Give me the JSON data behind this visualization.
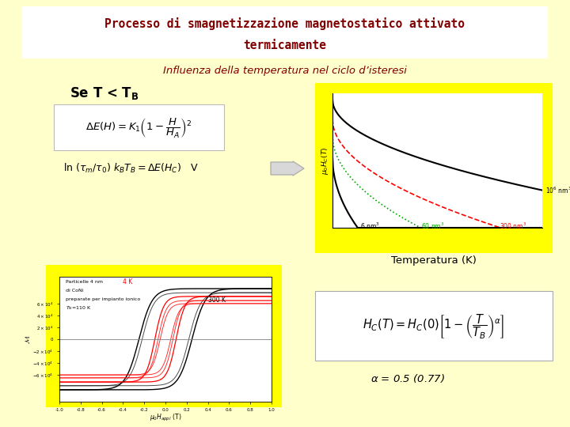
{
  "bg_color": "#ffffcc",
  "title_bg_color": "#ffffff",
  "title_text_line1": "Processo di smagnetizzazione magnetostatico attivato",
  "title_text_line2": "termicamente",
  "title_color": "#800000",
  "subtitle_text": "Influenza della temperatura nel ciclo d’isteresi",
  "subtitle_color": "#800000",
  "yellow_color": "#ffff00",
  "formula3_text": "$H_C(T) = H_C(0)\\left[1 - \\left(\\dfrac{T}{T_B}\\right)^\\alpha\\right]$",
  "alpha_text": "$\\alpha$ = 0.5 (0.77)",
  "temp_label": "Temperatura (K)"
}
